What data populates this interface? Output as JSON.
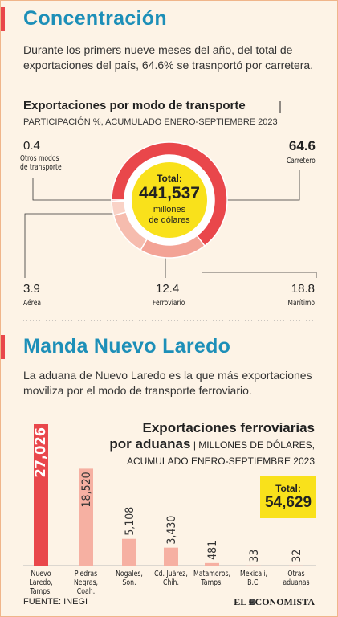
{
  "header": {
    "title": "Concentración",
    "text": "Durante los primers nueve meses del año, del total de exportaciones del país, 64.6% se trasnportó por carretera."
  },
  "section2": {
    "title": "Manda Nuevo Laredo",
    "text": "La aduana de Nuevo Laredo es la que más exportaciones moviliza por el modo de transporte ferroviario."
  },
  "chart_data": [
    {
      "type": "donut",
      "title": "Exportaciones por modo de transporte",
      "subtitle": "PARTICIPACIÓN %, ACUMULADO ENERO-SEPTIEMBRE 2023",
      "categories": [
        "Carretero",
        "Marítimo",
        "Ferroviario",
        "Aérea",
        "Otros modos\nde transporte"
      ],
      "values": [
        64.6,
        18.8,
        12.4,
        3.9,
        0.4
      ],
      "colors": [
        "#e9474b",
        "#f3a396",
        "#f6bcae",
        "#f9d2c6",
        "#e9474b"
      ],
      "center": {
        "label": "Total:",
        "value": "441,537",
        "unit": "millones\nde dólares"
      }
    },
    {
      "type": "bar",
      "title": [
        "Exportaciones ferroviarias",
        "por aduanas"
      ],
      "subtitle": [
        "MILLONES DE DÓLARES,",
        "ACUMULADO ENERO-SEPTIEMBRE 2023"
      ],
      "categories": [
        "Nuevo Laredo,\nTamps.",
        "Piedras\nNegras, Coah.",
        "Nogales, Son.",
        "Cd. Juárez,\nChih.",
        "Matamoros,\nTamps.",
        "Mexicali,\nB.C.",
        "Otras\naduanas"
      ],
      "values": [
        27026,
        18520,
        5108,
        3430,
        481,
        33,
        32
      ],
      "value_labels": [
        "27,026",
        "18,520",
        "5,108",
        "3,430",
        "481",
        "33",
        "32"
      ],
      "colors": [
        "#e9474b",
        "#f6b0a2",
        "#f6b0a2",
        "#f6b0a2",
        "#f6b0a2",
        "#f6b0a2",
        "#f6b0a2"
      ],
      "total": {
        "label": "Total:",
        "value": "54,629"
      }
    }
  ],
  "footer": {
    "source": "FUENTE: INEGI",
    "brand": "EL ECONOMISTA"
  }
}
